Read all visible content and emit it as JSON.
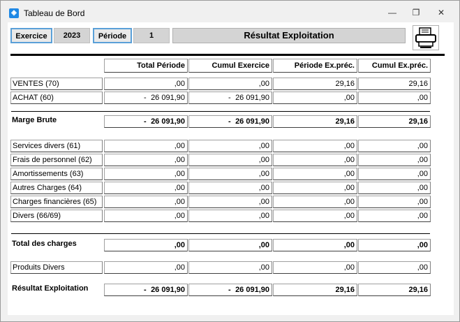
{
  "window": {
    "title": "Tableau de Bord"
  },
  "header": {
    "exercice_label": "Exercice",
    "exercice_value": "2023",
    "periode_label": "Période",
    "periode_value": "1",
    "title": "Résultat Exploitation"
  },
  "columns": [
    "Total Période",
    "Cumul Exercice",
    "Période Ex.préc.",
    "Cumul Ex.préc."
  ],
  "rows": {
    "ventes": {
      "label": "VENTES (70)",
      "values": [
        ",00",
        ",00",
        "29,16",
        "29,16"
      ]
    },
    "achat": {
      "label": "ACHAT (60)",
      "values": [
        "26 091,90",
        "26 091,90",
        ",00",
        ",00"
      ],
      "neg": [
        "-",
        "-"
      ]
    },
    "marge": {
      "label": "Marge Brute",
      "values": [
        "26 091,90",
        "26 091,90",
        "29,16",
        "29,16"
      ],
      "neg": [
        "-",
        "-"
      ]
    },
    "services": {
      "label": "Services divers (61)",
      "values": [
        ",00",
        ",00",
        ",00",
        ",00"
      ]
    },
    "personnel": {
      "label": "Frais de personnel (62)",
      "values": [
        ",00",
        ",00",
        ",00",
        ",00"
      ]
    },
    "amort": {
      "label": "Amortissements (63)",
      "values": [
        ",00",
        ",00",
        ",00",
        ",00"
      ]
    },
    "autres": {
      "label": "Autres Charges (64)",
      "values": [
        ",00",
        ",00",
        ",00",
        ",00"
      ]
    },
    "financieres": {
      "label": "Charges financières (65)",
      "values": [
        ",00",
        ",00",
        ",00",
        ",00"
      ]
    },
    "divers": {
      "label": "Divers (66/69)",
      "values": [
        ",00",
        ",00",
        ",00",
        ",00"
      ]
    },
    "total": {
      "label": "Total des charges",
      "values": [
        ",00",
        ",00",
        ",00",
        ",00"
      ]
    },
    "produits": {
      "label": "Produits Divers",
      "values": [
        ",00",
        ",00",
        ",00",
        ",00"
      ]
    },
    "resultat": {
      "label": "Résultat Exploitation",
      "values": [
        "26 091,90",
        "26 091,90",
        "29,16",
        "29,16"
      ],
      "neg": [
        "-",
        "-"
      ]
    }
  },
  "icons": {
    "app": "app-icon",
    "minimize": "minimize-icon",
    "restore": "restore-icon",
    "close": "close-icon",
    "print": "printer-icon"
  },
  "colors": {
    "accent": "#5aa0d8",
    "app_icon": "#1e88e5"
  }
}
